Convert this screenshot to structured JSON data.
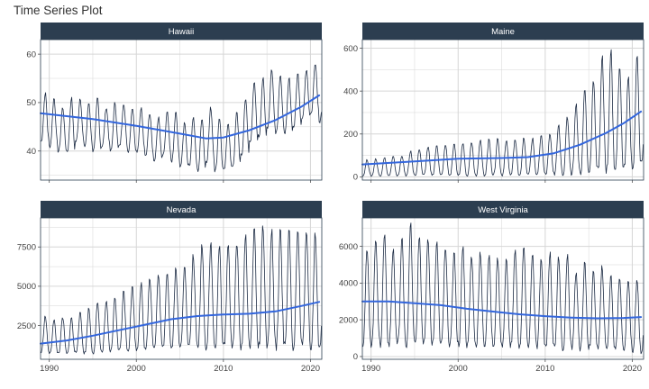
{
  "title": "Time Series Plot",
  "colors": {
    "strip": "#2c3e50",
    "series_line": "#1c2b44",
    "trend_line": "#3366dd",
    "grid": "#d6d6d6",
    "panel_border": "#2c3e50"
  },
  "chart_data": [
    {
      "type": "line",
      "panel": "Hawaii",
      "x_range": [
        1989,
        2021.3
      ],
      "xticks": [
        1990,
        2000,
        2010,
        2020
      ],
      "ylim": [
        34,
        63
      ],
      "yticks": [
        40,
        50,
        60
      ],
      "series": [
        {
          "values": {
            "seasonal_low": [
              42,
              41,
              40,
              40,
              42,
              41,
              40,
              41,
              40,
              41,
              40,
              40,
              39,
              38,
              39,
              38,
              37,
              37,
              36,
              38,
              36,
              36,
              37,
              39,
              42,
              43,
              45,
              44,
              44,
              45,
              47,
              48,
              46
            ],
            "seasonal_high": [
              52,
              51,
              49,
              51,
              51,
              50,
              51,
              49,
              50,
              50,
              49,
              49,
              48,
              47,
              48,
              48,
              46,
              47,
              47,
              49,
              47,
              46,
              48,
              51,
              54,
              55,
              57,
              56,
              55,
              56,
              57,
              58,
              56
            ]
          }
        },
        {
          "trend": [
            {
              "x": 1989,
              "y": 47.8
            },
            {
              "x": 1995,
              "y": 46.6
            },
            {
              "x": 2000,
              "y": 45.2
            },
            {
              "x": 2005,
              "y": 43.6
            },
            {
              "x": 2008,
              "y": 42.6
            },
            {
              "x": 2010,
              "y": 42.8
            },
            {
              "x": 2013,
              "y": 44.3
            },
            {
              "x": 2016,
              "y": 46.4
            },
            {
              "x": 2019,
              "y": 49.2
            },
            {
              "x": 2021,
              "y": 51.5
            }
          ]
        }
      ]
    },
    {
      "type": "line",
      "panel": "Maine",
      "x_range": [
        1989,
        2021.3
      ],
      "xticks": [
        1990,
        2000,
        2010,
        2020
      ],
      "ylim": [
        -15,
        640
      ],
      "yticks": [
        0,
        200,
        400,
        600
      ],
      "series": [
        {
          "values": {
            "seasonal_low": [
              5,
              5,
              6,
              6,
              6,
              7,
              7,
              7,
              8,
              8,
              8,
              8,
              9,
              9,
              9,
              9,
              10,
              10,
              10,
              10,
              12,
              12,
              14,
              16,
              18,
              20,
              25,
              30,
              35,
              40,
              45,
              50,
              55
            ],
            "seasonal_high": [
              80,
              85,
              90,
              95,
              100,
              120,
              130,
              140,
              145,
              150,
              150,
              160,
              165,
              170,
              175,
              180,
              170,
              175,
              180,
              180,
              190,
              200,
              240,
              280,
              340,
              410,
              460,
              560,
              590,
              510,
              470,
              560,
              540
            ]
          }
        },
        {
          "trend": [
            {
              "x": 1989,
              "y": 58
            },
            {
              "x": 1995,
              "y": 72
            },
            {
              "x": 2000,
              "y": 85
            },
            {
              "x": 2005,
              "y": 88
            },
            {
              "x": 2008,
              "y": 92
            },
            {
              "x": 2011,
              "y": 110
            },
            {
              "x": 2014,
              "y": 150
            },
            {
              "x": 2017,
              "y": 205
            },
            {
              "x": 2019,
              "y": 250
            },
            {
              "x": 2021,
              "y": 305
            }
          ]
        }
      ]
    },
    {
      "type": "line",
      "panel": "Nevada",
      "x_range": [
        1989,
        2021.3
      ],
      "xticks": [
        1990,
        2000,
        2010,
        2020
      ],
      "ylim": [
        350,
        9350
      ],
      "yticks": [
        2500,
        5000,
        7500
      ],
      "series": [
        {
          "values": {
            "seasonal_low": [
              800,
              700,
              750,
              700,
              800,
              750,
              800,
              800,
              850,
              900,
              950,
              1000,
              1000,
              1050,
              1100,
              1100,
              1100,
              1150,
              1100,
              1100,
              1100,
              1150,
              1100,
              1150,
              1200,
              1150,
              1200,
              1150,
              1200,
              1150,
              1200,
              1150,
              1100
            ],
            "seasonal_high": [
              3100,
              2900,
              3000,
              3000,
              3300,
              3600,
              3900,
              4000,
              4300,
              4700,
              5000,
              5200,
              5600,
              5800,
              6000,
              6200,
              6500,
              7000,
              7700,
              7800,
              7600,
              7700,
              7900,
              8200,
              8700,
              8900,
              8600,
              8700,
              8500,
              8600,
              8700,
              8400,
              8200
            ]
          }
        },
        {
          "trend": [
            {
              "x": 1989,
              "y": 1350
            },
            {
              "x": 1992,
              "y": 1550
            },
            {
              "x": 1995,
              "y": 1850
            },
            {
              "x": 1998,
              "y": 2200
            },
            {
              "x": 2001,
              "y": 2550
            },
            {
              "x": 2004,
              "y": 2900
            },
            {
              "x": 2007,
              "y": 3100
            },
            {
              "x": 2010,
              "y": 3200
            },
            {
              "x": 2013,
              "y": 3250
            },
            {
              "x": 2016,
              "y": 3400
            },
            {
              "x": 2019,
              "y": 3750
            },
            {
              "x": 2021,
              "y": 4000
            }
          ]
        }
      ]
    },
    {
      "type": "line",
      "panel": "West Virginia",
      "x_range": [
        1989,
        2021.3
      ],
      "xticks": [
        1990,
        2000,
        2010,
        2020
      ],
      "ylim": [
        -150,
        7550
      ],
      "yticks": [
        0,
        2000,
        4000,
        6000
      ],
      "series": [
        {
          "values": {
            "seasonal_low": [
              700,
              700,
              650,
              700,
              700,
              650,
              700,
              650,
              700,
              650,
              600,
              650,
              600,
              600,
              650,
              600,
              550,
              600,
              550,
              600,
              500,
              550,
              500,
              450,
              500,
              450,
              500,
              450,
              400,
              450,
              400,
              350,
              300
            ],
            "seasonal_high": [
              5800,
              6500,
              6700,
              5900,
              6400,
              7200,
              6600,
              6400,
              6200,
              6100,
              5800,
              6100,
              5500,
              5700,
              5500,
              5400,
              5300,
              5800,
              6000,
              5600,
              5300,
              5700,
              5400,
              5600,
              4600,
              5100,
              4600,
              4900,
              4400,
              4300,
              4200,
              4100,
              4900
            ]
          }
        },
        {
          "trend": [
            {
              "x": 1989,
              "y": 3000
            },
            {
              "x": 1992,
              "y": 3000
            },
            {
              "x": 1995,
              "y": 2900
            },
            {
              "x": 1998,
              "y": 2800
            },
            {
              "x": 2001,
              "y": 2600
            },
            {
              "x": 2004,
              "y": 2450
            },
            {
              "x": 2007,
              "y": 2300
            },
            {
              "x": 2010,
              "y": 2200
            },
            {
              "x": 2013,
              "y": 2120
            },
            {
              "x": 2016,
              "y": 2080
            },
            {
              "x": 2019,
              "y": 2100
            },
            {
              "x": 2021,
              "y": 2150
            }
          ]
        }
      ]
    }
  ]
}
